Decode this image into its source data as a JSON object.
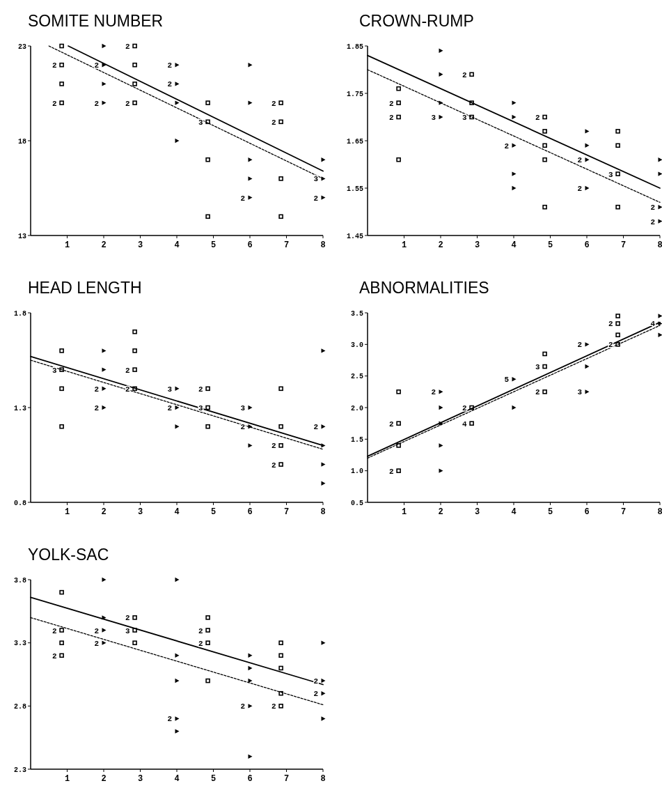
{
  "chart_data": [
    {
      "type": "scatter",
      "title": "SOMITE NUMBER",
      "xlim": [
        0,
        8
      ],
      "xticks": [
        1,
        2,
        3,
        4,
        5,
        6,
        7,
        8
      ],
      "ylim": [
        13,
        23
      ],
      "yticks": [
        13,
        18,
        23
      ],
      "series": [
        {
          "type": "scatter",
          "marker": "square",
          "color": "#000000",
          "x": [
            0.85,
            0.85,
            0.85,
            0.85,
            2.85,
            2.85,
            2.85,
            2.85,
            4.85,
            4.85,
            4.85,
            4.85,
            6.85,
            6.85,
            6.85,
            6.85
          ],
          "values": [
            23,
            22,
            21,
            20,
            23,
            22,
            21,
            20,
            20,
            19,
            17,
            14,
            20,
            19,
            16,
            14
          ]
        },
        {
          "type": "scatter",
          "marker": "triangle",
          "color": "#000000",
          "x": [
            2,
            2,
            2,
            2,
            4,
            4,
            4,
            4,
            6,
            6,
            6,
            6,
            6,
            8,
            8,
            8
          ],
          "values": [
            23,
            22,
            21,
            20,
            22,
            21,
            20,
            18,
            22,
            20,
            17,
            16,
            15,
            17,
            16,
            15
          ]
        },
        {
          "type": "line",
          "line_style": "solid",
          "color": "#000000",
          "x": [
            1.03,
            8
          ],
          "values": [
            23,
            16.4
          ]
        },
        {
          "type": "line",
          "line_style": "dashed",
          "color": "#000000",
          "x": [
            0.5,
            8
          ],
          "values": [
            23,
            16.0
          ]
        }
      ],
      "annotations": [
        {
          "text": "2",
          "x": 0.85,
          "y": 22
        },
        {
          "text": "2",
          "x": 0.85,
          "y": 20
        },
        {
          "text": "2",
          "x": 2,
          "y": 22
        },
        {
          "text": "2",
          "x": 2,
          "y": 20
        },
        {
          "text": "2",
          "x": 2.85,
          "y": 23
        },
        {
          "text": "2",
          "x": 2.85,
          "y": 20
        },
        {
          "text": "2",
          "x": 4,
          "y": 22
        },
        {
          "text": "2",
          "x": 4,
          "y": 21
        },
        {
          "text": "3",
          "x": 4.85,
          "y": 19
        },
        {
          "text": "2",
          "x": 6,
          "y": 15
        },
        {
          "text": "2",
          "x": 6.85,
          "y": 20
        },
        {
          "text": "2",
          "x": 6.85,
          "y": 19
        },
        {
          "text": "3",
          "x": 8,
          "y": 16
        },
        {
          "text": "2",
          "x": 8,
          "y": 15
        }
      ]
    },
    {
      "type": "scatter",
      "title": "CROWN-RUMP",
      "xlim": [
        0,
        8
      ],
      "xticks": [
        1,
        2,
        3,
        4,
        5,
        6,
        7,
        8
      ],
      "ylim": [
        1.45,
        1.85
      ],
      "yticks": [
        1.45,
        1.55,
        1.65,
        1.75,
        1.85
      ],
      "series": [
        {
          "type": "scatter",
          "marker": "square",
          "color": "#000000",
          "x": [
            0.85,
            0.85,
            0.85,
            0.85,
            2.85,
            2.85,
            2.85,
            4.85,
            4.85,
            4.85,
            4.85,
            4.85,
            6.85,
            6.85,
            6.85,
            6.85
          ],
          "values": [
            1.76,
            1.73,
            1.7,
            1.61,
            1.79,
            1.73,
            1.7,
            1.7,
            1.67,
            1.64,
            1.61,
            1.51,
            1.67,
            1.64,
            1.58,
            1.51
          ]
        },
        {
          "type": "scatter",
          "marker": "triangle",
          "color": "#000000",
          "x": [
            2,
            2,
            2,
            2,
            4,
            4,
            4,
            4,
            4,
            6,
            6,
            6,
            6,
            8,
            8,
            8,
            8
          ],
          "values": [
            1.84,
            1.79,
            1.73,
            1.7,
            1.73,
            1.7,
            1.64,
            1.58,
            1.55,
            1.67,
            1.64,
            1.61,
            1.55,
            1.61,
            1.58,
            1.51,
            1.48
          ]
        },
        {
          "type": "line",
          "line_style": "solid",
          "color": "#000000",
          "x": [
            0,
            8
          ],
          "values": [
            1.83,
            1.55
          ]
        },
        {
          "type": "line",
          "line_style": "dashed",
          "color": "#000000",
          "x": [
            0,
            8
          ],
          "values": [
            1.8,
            1.52
          ]
        }
      ],
      "annotations": [
        {
          "text": "2",
          "x": 0.85,
          "y": 1.73
        },
        {
          "text": "2",
          "x": 0.85,
          "y": 1.7
        },
        {
          "text": "3",
          "x": 2,
          "y": 1.7
        },
        {
          "text": "2",
          "x": 2.85,
          "y": 1.79
        },
        {
          "text": "3",
          "x": 2.85,
          "y": 1.7
        },
        {
          "text": "2",
          "x": 4,
          "y": 1.64
        },
        {
          "text": "2",
          "x": 4.85,
          "y": 1.7
        },
        {
          "text": "2",
          "x": 6,
          "y": 1.61
        },
        {
          "text": "2",
          "x": 6,
          "y": 1.55
        },
        {
          "text": "3",
          "x": 6.85,
          "y": 1.58
        },
        {
          "text": "2",
          "x": 8,
          "y": 1.51
        },
        {
          "text": "2",
          "x": 8,
          "y": 1.48
        }
      ]
    },
    {
      "type": "scatter",
      "title": "HEAD LENGTH",
      "xlim": [
        0,
        8
      ],
      "xticks": [
        1,
        2,
        3,
        4,
        5,
        6,
        7,
        8
      ],
      "ylim": [
        0.8,
        1.8
      ],
      "yticks": [
        0.8,
        1.3,
        1.8
      ],
      "series": [
        {
          "type": "scatter",
          "marker": "square",
          "color": "#000000",
          "x": [
            0.85,
            0.85,
            0.85,
            0.85,
            2.85,
            2.85,
            2.85,
            2.85,
            4.85,
            4.85,
            4.85,
            6.85,
            6.85,
            6.85,
            6.85
          ],
          "values": [
            1.6,
            1.5,
            1.4,
            1.2,
            1.7,
            1.6,
            1.5,
            1.4,
            1.4,
            1.3,
            1.2,
            1.4,
            1.2,
            1.1,
            1.0
          ]
        },
        {
          "type": "scatter",
          "marker": "triangle",
          "color": "#000000",
          "x": [
            2,
            2,
            2,
            2,
            4,
            4,
            4,
            6,
            6,
            6,
            8,
            8,
            8,
            8,
            8
          ],
          "values": [
            1.6,
            1.5,
            1.4,
            1.3,
            1.4,
            1.3,
            1.2,
            1.3,
            1.2,
            1.1,
            1.6,
            1.2,
            1.1,
            1.0,
            0.9
          ]
        },
        {
          "type": "line",
          "line_style": "solid",
          "color": "#000000",
          "x": [
            0,
            8
          ],
          "values": [
            1.57,
            1.1
          ]
        },
        {
          "type": "line",
          "line_style": "dashed",
          "color": "#000000",
          "x": [
            0,
            8
          ],
          "values": [
            1.55,
            1.08
          ]
        }
      ],
      "annotations": [
        {
          "text": "3",
          "x": 0.85,
          "y": 1.5
        },
        {
          "text": "2",
          "x": 2,
          "y": 1.4
        },
        {
          "text": "2",
          "x": 2,
          "y": 1.3
        },
        {
          "text": "2",
          "x": 2.85,
          "y": 1.5
        },
        {
          "text": "2",
          "x": 2.85,
          "y": 1.4
        },
        {
          "text": "3",
          "x": 4,
          "y": 1.4
        },
        {
          "text": "2",
          "x": 4,
          "y": 1.3
        },
        {
          "text": "2",
          "x": 4.85,
          "y": 1.4
        },
        {
          "text": "3",
          "x": 4.85,
          "y": 1.3
        },
        {
          "text": "3",
          "x": 6,
          "y": 1.3
        },
        {
          "text": "2",
          "x": 6,
          "y": 1.2
        },
        {
          "text": "2",
          "x": 6.85,
          "y": 1.1
        },
        {
          "text": "2",
          "x": 6.85,
          "y": 1.0
        },
        {
          "text": "2",
          "x": 8,
          "y": 1.2
        }
      ]
    },
    {
      "type": "scatter",
      "title": "ABNORMALITIES",
      "xlim": [
        0,
        8
      ],
      "xticks": [
        1,
        2,
        3,
        4,
        5,
        6,
        7,
        8
      ],
      "ylim": [
        0.5,
        3.5
      ],
      "yticks": [
        0.5,
        {
          "value": 1,
          "label": "1.0"
        },
        1.5,
        {
          "value": 2,
          "label": "2.0"
        },
        2.5,
        {
          "value": 3,
          "label": "3.0"
        },
        3.5
      ],
      "series": [
        {
          "type": "scatter",
          "marker": "square",
          "color": "#000000",
          "x": [
            0.85,
            0.85,
            0.85,
            0.85,
            2.85,
            2.85,
            4.85,
            4.85,
            4.85,
            6.85,
            6.85,
            6.85,
            6.85
          ],
          "values": [
            2.25,
            1.75,
            1.4,
            1.0,
            2.0,
            1.75,
            2.85,
            2.65,
            2.25,
            3.45,
            3.33,
            3.15,
            3.0
          ]
        },
        {
          "type": "scatter",
          "marker": "triangle",
          "color": "#000000",
          "x": [
            2,
            2,
            2,
            2,
            2,
            4,
            4,
            6,
            6,
            6,
            8,
            8,
            8
          ],
          "values": [
            2.25,
            2.0,
            1.75,
            1.4,
            1.0,
            2.45,
            2.0,
            3.0,
            2.65,
            2.25,
            3.45,
            3.33,
            3.15
          ]
        },
        {
          "type": "line",
          "line_style": "solid",
          "color": "#000000",
          "x": [
            0,
            8
          ],
          "values": [
            1.23,
            3.35
          ]
        },
        {
          "type": "line",
          "line_style": "dashed",
          "color": "#000000",
          "x": [
            0,
            8
          ],
          "values": [
            1.2,
            3.3
          ]
        }
      ],
      "annotations": [
        {
          "text": "2",
          "x": 0.85,
          "y": 1.75
        },
        {
          "text": "2",
          "x": 0.85,
          "y": 1.0
        },
        {
          "text": "2",
          "x": 2,
          "y": 2.25
        },
        {
          "text": "2",
          "x": 2.85,
          "y": 2.0
        },
        {
          "text": "4",
          "x": 2.85,
          "y": 1.75
        },
        {
          "text": "5",
          "x": 4,
          "y": 2.45
        },
        {
          "text": "3",
          "x": 4.85,
          "y": 2.65
        },
        {
          "text": "2",
          "x": 4.85,
          "y": 2.25
        },
        {
          "text": "2",
          "x": 6,
          "y": 3.0
        },
        {
          "text": "3",
          "x": 6,
          "y": 2.25
        },
        {
          "text": "2",
          "x": 6.85,
          "y": 3.33
        },
        {
          "text": "2",
          "x": 6.85,
          "y": 3.0
        },
        {
          "text": "4",
          "x": 8,
          "y": 3.33
        }
      ]
    },
    {
      "type": "scatter",
      "title": "YOLK-SAC",
      "xlim": [
        0,
        8
      ],
      "xticks": [
        1,
        2,
        3,
        4,
        5,
        6,
        7,
        8
      ],
      "ylim": [
        2.3,
        3.8
      ],
      "yticks": [
        2.3,
        2.8,
        3.3,
        3.8
      ],
      "series": [
        {
          "type": "scatter",
          "marker": "square",
          "color": "#000000",
          "x": [
            0.85,
            0.85,
            0.85,
            0.85,
            2.85,
            2.85,
            2.85,
            4.85,
            4.85,
            4.85,
            4.85,
            6.85,
            6.85,
            6.85,
            6.85,
            6.85
          ],
          "values": [
            3.7,
            3.4,
            3.3,
            3.2,
            3.5,
            3.4,
            3.3,
            3.5,
            3.4,
            3.3,
            3.0,
            3.3,
            3.2,
            3.1,
            2.9,
            2.8
          ]
        },
        {
          "type": "scatter",
          "marker": "triangle",
          "color": "#000000",
          "x": [
            2,
            2,
            2,
            2,
            4,
            4,
            4,
            4,
            4,
            6,
            6,
            6,
            6,
            6,
            8,
            8,
            8,
            8
          ],
          "values": [
            3.8,
            3.5,
            3.4,
            3.3,
            3.8,
            3.2,
            3.0,
            2.7,
            2.6,
            3.2,
            3.1,
            3.0,
            2.8,
            2.4,
            3.3,
            3.0,
            2.9,
            2.7
          ]
        },
        {
          "type": "line",
          "line_style": "solid",
          "color": "#000000",
          "x": [
            0,
            8
          ],
          "values": [
            3.66,
            2.97
          ]
        },
        {
          "type": "line",
          "line_style": "dashed",
          "color": "#000000",
          "x": [
            0,
            8
          ],
          "values": [
            3.5,
            2.81
          ]
        }
      ],
      "annotations": [
        {
          "text": "2",
          "x": 0.85,
          "y": 3.4
        },
        {
          "text": "2",
          "x": 0.85,
          "y": 3.2
        },
        {
          "text": "2",
          "x": 2,
          "y": 3.4
        },
        {
          "text": "2",
          "x": 2,
          "y": 3.3
        },
        {
          "text": "2",
          "x": 2.85,
          "y": 3.5
        },
        {
          "text": "3",
          "x": 2.85,
          "y": 3.4
        },
        {
          "text": "2",
          "x": 4,
          "y": 2.7
        },
        {
          "text": "2",
          "x": 4.85,
          "y": 3.4
        },
        {
          "text": "2",
          "x": 4.85,
          "y": 3.3
        },
        {
          "text": "2",
          "x": 6,
          "y": 2.8
        },
        {
          "text": "2",
          "x": 6.85,
          "y": 2.8
        },
        {
          "text": "2",
          "x": 8,
          "y": 3.0
        },
        {
          "text": "2",
          "x": 8,
          "y": 2.9
        }
      ]
    }
  ]
}
